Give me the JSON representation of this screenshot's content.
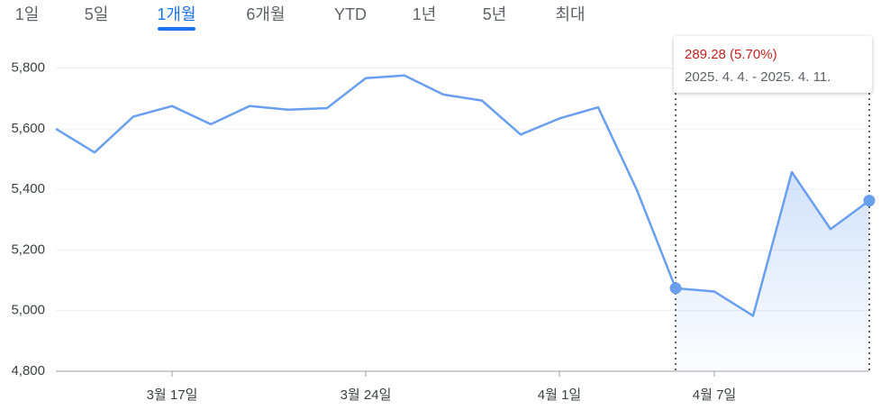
{
  "tabs": {
    "items": [
      "1일",
      "5일",
      "1개월",
      "6개월",
      "YTD",
      "1년",
      "5년",
      "최대"
    ],
    "active": 2
  },
  "chart_data": {
    "type": "line",
    "categories": [
      null,
      null,
      null,
      "3월 17일",
      null,
      null,
      null,
      null,
      "3월 24일",
      null,
      null,
      null,
      null,
      "4월 1일",
      null,
      null,
      null,
      "4월 7일",
      null,
      null,
      null,
      null
    ],
    "series": [
      {
        "color": "#6a9ff0",
        "values": [
          5600,
          5522,
          5640,
          5675,
          5615,
          5675,
          5663,
          5668,
          5767,
          5776,
          5713,
          5693,
          5581,
          5634,
          5671,
          5398,
          5074,
          5063,
          4983,
          5457,
          5269,
          5363
        ]
      }
    ],
    "ylim": [
      4800,
      5900
    ],
    "yticks": [
      {
        "value": 4800,
        "label": "4,800"
      },
      {
        "value": 5000,
        "label": "5,000"
      },
      {
        "value": 5200,
        "label": "5,200"
      },
      {
        "value": 5400,
        "label": "5,400"
      },
      {
        "value": 5600,
        "label": "5,600"
      },
      {
        "value": 5800,
        "label": "5,800"
      }
    ],
    "grid": true,
    "selection": [
      16,
      21
    ],
    "tooltip": {
      "change": "289.28 (5.70%)",
      "range": "2025. 4. 4. - 2025. 4. 11."
    }
  }
}
